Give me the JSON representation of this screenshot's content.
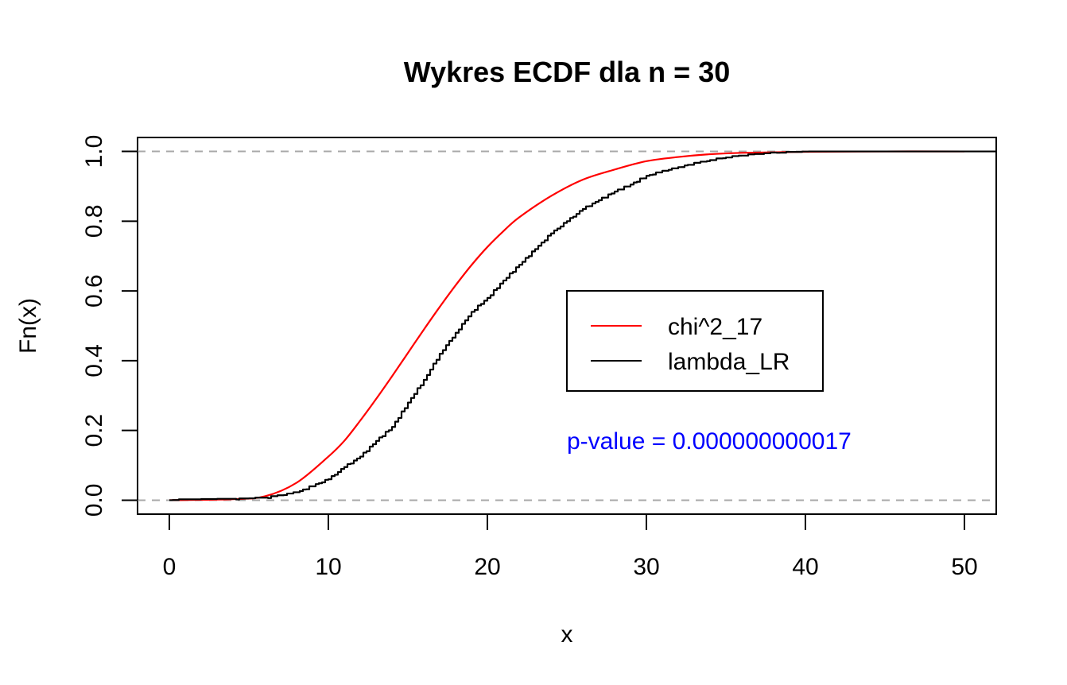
{
  "chart_data": {
    "type": "line",
    "title": "Wykres ECDF dla n = 30",
    "xlabel": "x",
    "ylabel": "Fn(x)",
    "xlim": [
      -2,
      52
    ],
    "ylim": [
      -0.04,
      1.04
    ],
    "x_ticks": [
      0,
      10,
      20,
      30,
      40,
      50
    ],
    "x_tick_labels": [
      "0",
      "10",
      "20",
      "30",
      "40",
      "50"
    ],
    "y_ticks": [
      0.0,
      0.2,
      0.4,
      0.6,
      0.8,
      1.0
    ],
    "y_tick_labels": [
      "0.0",
      "0.2",
      "0.4",
      "0.6",
      "0.8",
      "1.0"
    ],
    "reference_lines": [
      0,
      1
    ],
    "legend_position": "center-right",
    "series": [
      {
        "name": "chi^2_17",
        "color": "#ff0000",
        "style": "smooth",
        "x": [
          0,
          4,
          6,
          8,
          10,
          11,
          12,
          13,
          14,
          15,
          16,
          17,
          18,
          19,
          20,
          21,
          22,
          24,
          26,
          28,
          30,
          32,
          34,
          36,
          40,
          45,
          50
        ],
        "y": [
          0.0,
          0.003,
          0.011,
          0.05,
          0.125,
          0.17,
          0.228,
          0.29,
          0.355,
          0.422,
          0.489,
          0.554,
          0.616,
          0.674,
          0.726,
          0.771,
          0.811,
          0.872,
          0.919,
          0.948,
          0.972,
          0.984,
          0.992,
          0.996,
          0.999,
          1.0,
          1.0
        ]
      },
      {
        "name": "lambda_LR",
        "color": "#000000",
        "style": "step",
        "x": [
          0,
          4,
          6,
          8,
          10,
          11,
          12,
          13,
          14,
          15,
          16,
          17,
          18,
          19,
          20,
          21,
          22,
          23,
          24,
          25,
          26,
          27,
          28,
          29,
          30,
          32,
          34,
          36,
          38,
          40,
          45,
          50
        ],
        "y": [
          0.0,
          0.002,
          0.006,
          0.022,
          0.06,
          0.095,
          0.125,
          0.17,
          0.21,
          0.28,
          0.345,
          0.42,
          0.48,
          0.54,
          0.58,
          0.63,
          0.675,
          0.72,
          0.765,
          0.8,
          0.835,
          0.86,
          0.885,
          0.905,
          0.93,
          0.955,
          0.975,
          0.988,
          0.995,
          0.998,
          1.0,
          1.0
        ]
      }
    ],
    "annotation": {
      "text": "p-value = 0.000000000017",
      "color": "#0000ff"
    }
  }
}
